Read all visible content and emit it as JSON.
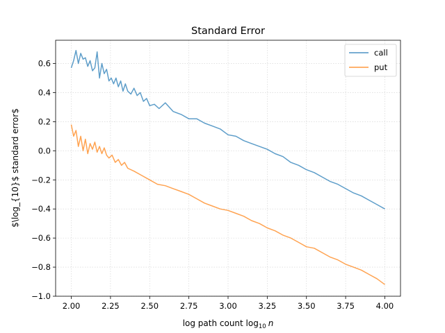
{
  "chart_data": {
    "type": "line",
    "title": "Standard Error",
    "xlabel": "log path count log",
    "xlabel_sub": "10",
    "xlabel_var": "n",
    "ylabel": "$\\log_{10}$ standard error$",
    "xlim": [
      1.9,
      4.1
    ],
    "ylim": [
      -1.0,
      0.76
    ],
    "xticks": [
      2.0,
      2.25,
      2.5,
      2.75,
      3.0,
      3.25,
      3.5,
      3.75,
      4.0
    ],
    "xtick_labels": [
      "2.00",
      "2.25",
      "2.50",
      "2.75",
      "3.00",
      "3.25",
      "3.50",
      "3.75",
      "4.00"
    ],
    "yticks": [
      -1.0,
      -0.8,
      -0.6,
      -0.4,
      -0.2,
      0.0,
      0.2,
      0.4,
      0.6
    ],
    "ytick_labels": [
      "−1.0",
      "−0.8",
      "−0.6",
      "−0.4",
      "−0.2",
      "0.0",
      "0.2",
      "0.4",
      "0.6"
    ],
    "grid": true,
    "legend_position": "top-right",
    "series": [
      {
        "name": "call",
        "color": "#1f77b4",
        "points": [
          [
            2.0,
            0.57
          ],
          [
            2.015,
            0.62
          ],
          [
            2.03,
            0.69
          ],
          [
            2.045,
            0.6
          ],
          [
            2.06,
            0.67
          ],
          [
            2.075,
            0.63
          ],
          [
            2.09,
            0.64
          ],
          [
            2.105,
            0.58
          ],
          [
            2.12,
            0.62
          ],
          [
            2.135,
            0.55
          ],
          [
            2.15,
            0.57
          ],
          [
            2.165,
            0.68
          ],
          [
            2.18,
            0.5
          ],
          [
            2.195,
            0.6
          ],
          [
            2.21,
            0.53
          ],
          [
            2.225,
            0.56
          ],
          [
            2.24,
            0.48
          ],
          [
            2.255,
            0.5
          ],
          [
            2.27,
            0.46
          ],
          [
            2.285,
            0.5
          ],
          [
            2.3,
            0.44
          ],
          [
            2.315,
            0.48
          ],
          [
            2.33,
            0.41
          ],
          [
            2.345,
            0.46
          ],
          [
            2.36,
            0.41
          ],
          [
            2.38,
            0.39
          ],
          [
            2.4,
            0.43
          ],
          [
            2.42,
            0.38
          ],
          [
            2.44,
            0.4
          ],
          [
            2.46,
            0.34
          ],
          [
            2.48,
            0.36
          ],
          [
            2.5,
            0.31
          ],
          [
            2.53,
            0.32
          ],
          [
            2.56,
            0.29
          ],
          [
            2.6,
            0.33
          ],
          [
            2.65,
            0.27
          ],
          [
            2.7,
            0.25
          ],
          [
            2.75,
            0.22
          ],
          [
            2.8,
            0.22
          ],
          [
            2.85,
            0.19
          ],
          [
            2.9,
            0.17
          ],
          [
            2.95,
            0.15
          ],
          [
            3.0,
            0.11
          ],
          [
            3.05,
            0.1
          ],
          [
            3.1,
            0.07
          ],
          [
            3.15,
            0.05
          ],
          [
            3.2,
            0.03
          ],
          [
            3.25,
            0.01
          ],
          [
            3.3,
            -0.02
          ],
          [
            3.35,
            -0.04
          ],
          [
            3.4,
            -0.08
          ],
          [
            3.45,
            -0.1
          ],
          [
            3.5,
            -0.13
          ],
          [
            3.55,
            -0.15
          ],
          [
            3.6,
            -0.18
          ],
          [
            3.65,
            -0.21
          ],
          [
            3.7,
            -0.23
          ],
          [
            3.75,
            -0.26
          ],
          [
            3.8,
            -0.29
          ],
          [
            3.85,
            -0.31
          ],
          [
            3.9,
            -0.34
          ],
          [
            3.95,
            -0.37
          ],
          [
            4.0,
            -0.4
          ]
        ]
      },
      {
        "name": "put",
        "color": "#ff7f0e",
        "points": [
          [
            2.0,
            0.18
          ],
          [
            2.015,
            0.1
          ],
          [
            2.03,
            0.14
          ],
          [
            2.045,
            0.03
          ],
          [
            2.06,
            0.1
          ],
          [
            2.075,
            0.0
          ],
          [
            2.09,
            0.08
          ],
          [
            2.105,
            -0.02
          ],
          [
            2.12,
            0.05
          ],
          [
            2.135,
            0.01
          ],
          [
            2.15,
            0.06
          ],
          [
            2.165,
            -0.01
          ],
          [
            2.18,
            0.03
          ],
          [
            2.195,
            -0.02
          ],
          [
            2.21,
            0.02
          ],
          [
            2.225,
            -0.03
          ],
          [
            2.24,
            -0.05
          ],
          [
            2.26,
            -0.03
          ],
          [
            2.28,
            -0.08
          ],
          [
            2.3,
            -0.06
          ],
          [
            2.32,
            -0.1
          ],
          [
            2.34,
            -0.08
          ],
          [
            2.36,
            -0.12
          ],
          [
            2.4,
            -0.14
          ],
          [
            2.45,
            -0.17
          ],
          [
            2.5,
            -0.2
          ],
          [
            2.55,
            -0.23
          ],
          [
            2.6,
            -0.24
          ],
          [
            2.65,
            -0.26
          ],
          [
            2.7,
            -0.28
          ],
          [
            2.75,
            -0.3
          ],
          [
            2.8,
            -0.33
          ],
          [
            2.85,
            -0.36
          ],
          [
            2.9,
            -0.38
          ],
          [
            2.95,
            -0.4
          ],
          [
            3.0,
            -0.41
          ],
          [
            3.05,
            -0.43
          ],
          [
            3.1,
            -0.45
          ],
          [
            3.15,
            -0.48
          ],
          [
            3.2,
            -0.5
          ],
          [
            3.25,
            -0.53
          ],
          [
            3.3,
            -0.55
          ],
          [
            3.35,
            -0.58
          ],
          [
            3.4,
            -0.6
          ],
          [
            3.45,
            -0.63
          ],
          [
            3.5,
            -0.66
          ],
          [
            3.55,
            -0.67
          ],
          [
            3.6,
            -0.7
          ],
          [
            3.65,
            -0.73
          ],
          [
            3.7,
            -0.75
          ],
          [
            3.75,
            -0.78
          ],
          [
            3.8,
            -0.8
          ],
          [
            3.85,
            -0.82
          ],
          [
            3.9,
            -0.85
          ],
          [
            3.95,
            -0.88
          ],
          [
            4.0,
            -0.92
          ]
        ]
      }
    ]
  }
}
